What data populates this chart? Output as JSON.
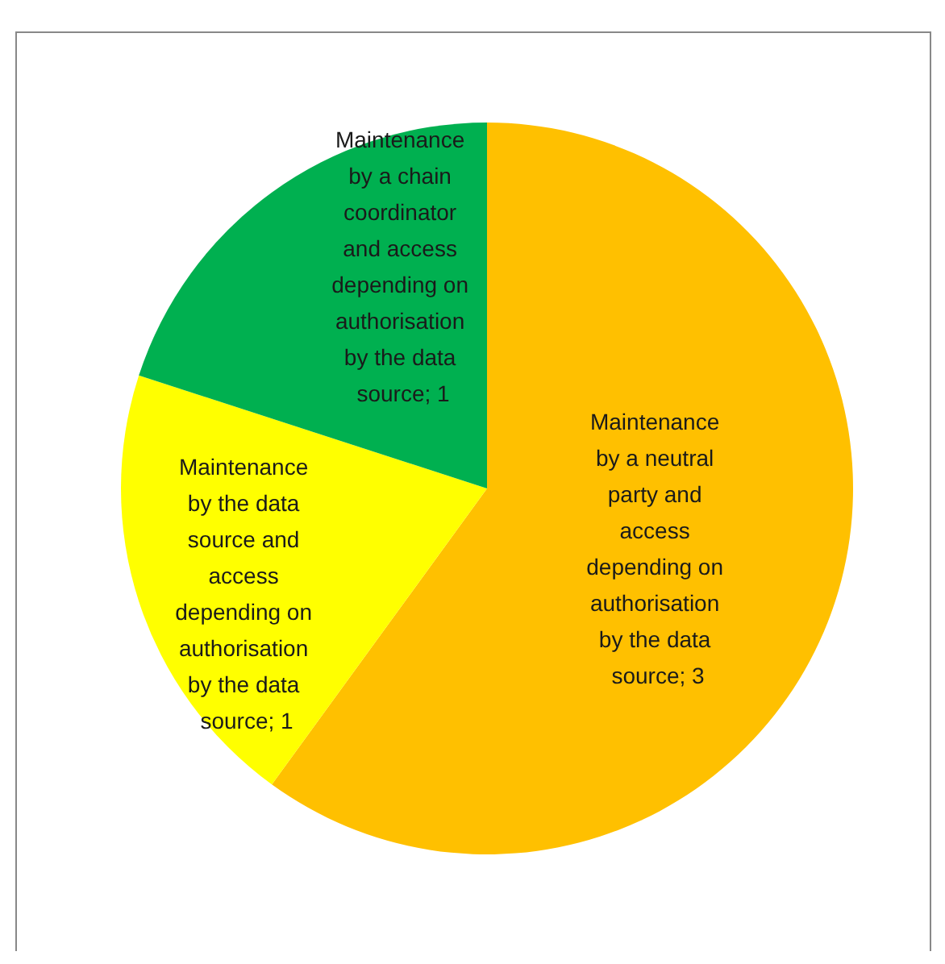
{
  "chart_data": {
    "type": "pie",
    "categories": [
      "Maintenance by a neutral party and access depending on authorisation by the data source",
      "Maintenance by the data source and access depending on authorisation by the data source",
      "Maintenance by a chain coordinator and access depending on authorisation by the data source"
    ],
    "values": [
      3,
      1,
      1
    ],
    "colors": [
      "#ffc000",
      "#ffff00",
      "#00b050"
    ],
    "value_labels": [
      "; 3",
      "; 1",
      "; 1"
    ],
    "legend": false
  }
}
